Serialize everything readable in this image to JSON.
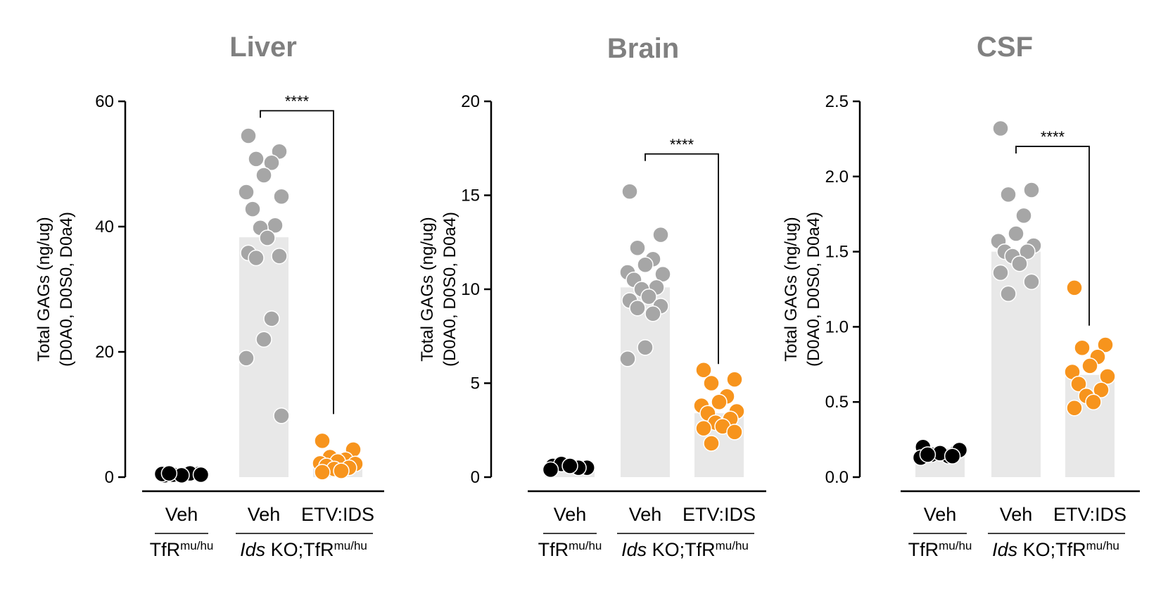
{
  "colors": {
    "veh_wt": "#000000",
    "veh_ko": "#a6a6a6",
    "etv_ids": "#f7941d",
    "bar": "#e8e8e8",
    "title": "#808080"
  },
  "ylabel_line1": "Total GAGs (ng/ug)",
  "ylabel_line2": "(D0A0, D0S0, D0a4)",
  "categories": [
    "Veh",
    "Veh",
    "ETV:IDS"
  ],
  "group_labels": {
    "wt_main": "TfR",
    "wt_sup": "mu/hu",
    "ko_italic": "Ids",
    "ko_main": " KO;TfR",
    "ko_sup": "mu/hu"
  },
  "significance": "****",
  "chart_data": [
    {
      "type": "bar",
      "title": "Liver",
      "ylim": [
        0,
        60
      ],
      "yticks": [
        0,
        20,
        40,
        60
      ],
      "ytick_labels": [
        "0",
        "20",
        "40",
        "60"
      ],
      "categories": [
        "Veh",
        "Veh",
        "ETV:IDS"
      ],
      "means": [
        0.4,
        38.3,
        2.2
      ],
      "points": [
        [
          0.3,
          0.5,
          0.4,
          0.6,
          0.3,
          0.5,
          0.4,
          0.6
        ],
        [
          54.5,
          52,
          50.8,
          50.2,
          48.2,
          45.5,
          44.8,
          42.8,
          40.2,
          39.8,
          38.2,
          35.8,
          35.3,
          35,
          25.3,
          22,
          19,
          9.8
        ],
        [
          5.8,
          4.4,
          3.2,
          2.8,
          2.5,
          2.2,
          2.1,
          1.8,
          1.5,
          1.3,
          1,
          0.8
        ]
      ],
      "sig_ylim_top": 58.5
    },
    {
      "type": "bar",
      "title": "Brain",
      "ylim": [
        0,
        20
      ],
      "yticks": [
        0,
        5,
        10,
        15,
        20
      ],
      "ytick_labels": [
        "0",
        "5",
        "10",
        "15",
        "20"
      ],
      "categories": [
        "Veh",
        "Veh",
        "ETV:IDS"
      ],
      "means": [
        0.55,
        10.1,
        3.4
      ],
      "points": [
        [
          0.6,
          0.5,
          0.7,
          0.5,
          0.6,
          0.4
        ],
        [
          15.2,
          12.9,
          12.2,
          11.6,
          11.3,
          10.9,
          10.8,
          10.5,
          10.1,
          10,
          9.6,
          9.4,
          9.1,
          9,
          8.7,
          6.9,
          6.3
        ],
        [
          5.7,
          5.2,
          5,
          4.3,
          4,
          3.8,
          3.5,
          3.4,
          3.1,
          2.9,
          2.7,
          2.6,
          2.4,
          1.8
        ]
      ],
      "sig_ylim_top": 17.2
    },
    {
      "type": "bar",
      "title": "CSF",
      "ylim": [
        0,
        2.5
      ],
      "yticks": [
        0,
        0.5,
        1.0,
        1.5,
        2.0,
        2.5
      ],
      "ytick_labels": [
        "0.0",
        "0.5",
        "1.0",
        "1.5",
        "2.0",
        "2.5"
      ],
      "categories": [
        "Veh",
        "Veh",
        "ETV:IDS"
      ],
      "means": [
        0.14,
        1.5,
        0.68
      ],
      "points": [
        [
          0.2,
          0.17,
          0.15,
          0.14,
          0.16,
          0.13,
          0.18,
          0.15,
          0.14
        ],
        [
          2.32,
          1.91,
          1.88,
          1.74,
          1.62,
          1.57,
          1.54,
          1.5,
          1.5,
          1.47,
          1.42,
          1.36,
          1.3,
          1.22
        ],
        [
          1.26,
          0.88,
          0.86,
          0.8,
          0.74,
          0.7,
          0.67,
          0.62,
          0.58,
          0.54,
          0.5,
          0.46
        ]
      ],
      "sig_ylim_top": 2.2
    }
  ]
}
